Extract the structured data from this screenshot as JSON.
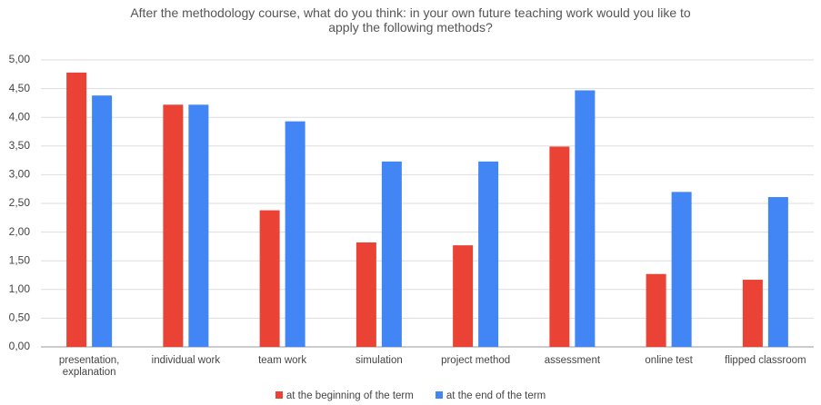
{
  "chart_data": {
    "type": "bar",
    "title": "After the methodology course, what do you think: in your own future teaching work would you like to apply the following methods?",
    "categories": [
      "presentation, explanation",
      "individual work",
      "team work",
      "simulation",
      "project method",
      "assessment",
      "online test",
      "flipped classroom"
    ],
    "series": [
      {
        "name": "at the beginning of the term",
        "color": "#ea4335",
        "values": [
          4.78,
          4.22,
          2.38,
          1.82,
          1.77,
          3.49,
          1.27,
          1.17
        ]
      },
      {
        "name": "at the end of the term",
        "color": "#4285f4",
        "values": [
          4.38,
          4.22,
          3.93,
          3.23,
          3.23,
          4.47,
          2.7,
          2.61
        ]
      }
    ],
    "ylim": [
      0,
      5
    ],
    "yticks": [
      {
        "value": 0,
        "label": "0,00"
      },
      {
        "value": 0.5,
        "label": "0,50"
      },
      {
        "value": 1,
        "label": "1,00"
      },
      {
        "value": 1.5,
        "label": "1,50"
      },
      {
        "value": 2,
        "label": "2,00"
      },
      {
        "value": 2.5,
        "label": "2,50"
      },
      {
        "value": 3,
        "label": "3,00"
      },
      {
        "value": 3.5,
        "label": "3,50"
      },
      {
        "value": 4,
        "label": "4,00"
      },
      {
        "value": 4.5,
        "label": "4,50"
      },
      {
        "value": 5,
        "label": "5,00"
      }
    ],
    "grid": true,
    "legend": "bottom"
  }
}
